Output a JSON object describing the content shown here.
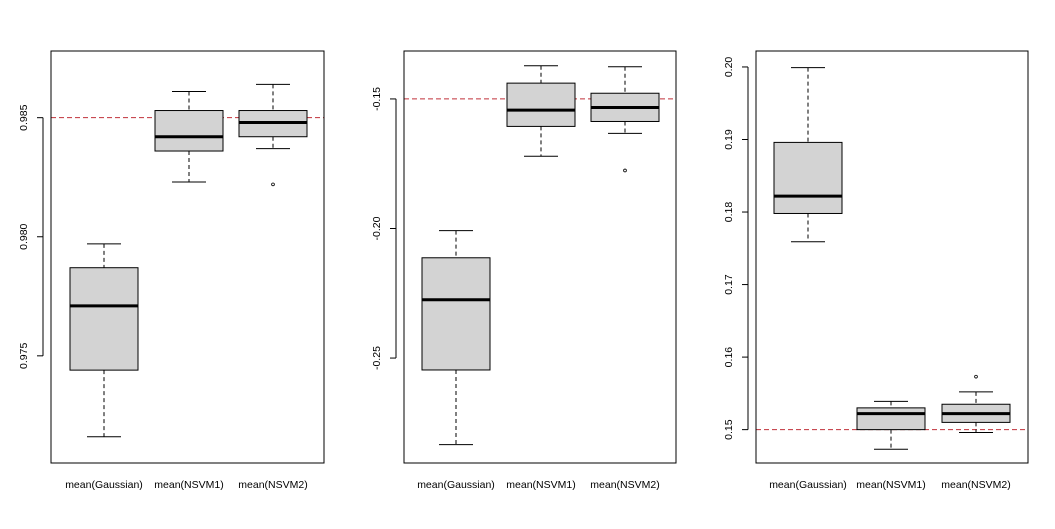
{
  "chart_data": [
    {
      "type": "boxplot",
      "title": "",
      "xlabel": "",
      "ylabel": "",
      "categories": [
        "mean(Gaussian)",
        "mean(NSVM1)",
        "mean(NSVM2)"
      ],
      "ylim": [
        0.9705,
        0.9878
      ],
      "yticks": [
        0.975,
        0.98,
        0.985
      ],
      "ytick_labels": [
        "0.975",
        "0.980",
        "0.985"
      ],
      "reference_line": 0.985,
      "boxes": [
        {
          "whisker_low": 0.9716,
          "q1": 0.9744,
          "median": 0.9771,
          "q3": 0.9787,
          "whisker_high": 0.9797,
          "outliers": []
        },
        {
          "whisker_low": 0.9823,
          "q1": 0.9836,
          "median": 0.9842,
          "q3": 0.9853,
          "whisker_high": 0.9861,
          "outliers": []
        },
        {
          "whisker_low": 0.9837,
          "q1": 0.9842,
          "median": 0.9848,
          "q3": 0.9853,
          "whisker_high": 0.9864,
          "outliers": [
            0.9822
          ]
        }
      ]
    },
    {
      "type": "boxplot",
      "title": "",
      "xlabel": "",
      "ylabel": "",
      "categories": [
        "mean(Gaussian)",
        "mean(NSVM1)",
        "mean(NSVM2)"
      ],
      "ylim": [
        -0.2905,
        -0.1315
      ],
      "yticks": [
        -0.25,
        -0.2,
        -0.15
      ],
      "ytick_labels": [
        "-0.25",
        "-0.20",
        "-0.15"
      ],
      "reference_line": -0.15,
      "boxes": [
        {
          "whisker_low": -0.2834,
          "q1": -0.2546,
          "median": -0.2275,
          "q3": -0.2113,
          "whisker_high": -0.2008,
          "outliers": []
        },
        {
          "whisker_low": -0.1721,
          "q1": -0.1606,
          "median": -0.1543,
          "q3": -0.1439,
          "whisker_high": -0.1372,
          "outliers": []
        },
        {
          "whisker_low": -0.1633,
          "q1": -0.1587,
          "median": -0.1533,
          "q3": -0.1478,
          "whisker_high": -0.1376,
          "outliers": [
            -0.1776
          ]
        }
      ]
    },
    {
      "type": "boxplot",
      "title": "",
      "xlabel": "",
      "ylabel": "",
      "categories": [
        "mean(Gaussian)",
        "mean(NSVM1)",
        "mean(NSVM2)"
      ],
      "ylim": [
        0.1454,
        0.2022
      ],
      "yticks": [
        0.15,
        0.16,
        0.17,
        0.18,
        0.19,
        0.2
      ],
      "ytick_labels": [
        "0.15",
        "0.16",
        "0.17",
        "0.18",
        "0.19",
        "0.20"
      ],
      "reference_line": 0.15,
      "boxes": [
        {
          "whisker_low": 0.1759,
          "q1": 0.1798,
          "median": 0.1822,
          "q3": 0.1896,
          "whisker_high": 0.1999,
          "outliers": []
        },
        {
          "whisker_low": 0.1473,
          "q1": 0.15,
          "median": 0.1522,
          "q3": 0.153,
          "whisker_high": 0.1539,
          "outliers": []
        },
        {
          "whisker_low": 0.1496,
          "q1": 0.151,
          "median": 0.1522,
          "q3": 0.1535,
          "whisker_high": 0.1552,
          "outliers": [
            0.1573
          ]
        }
      ]
    }
  ],
  "colors": {
    "box_fill": "#d3d3d3",
    "box_stroke": "#000000",
    "median": "#000000",
    "reference_line": "#c0303a",
    "axis": "#000000"
  }
}
